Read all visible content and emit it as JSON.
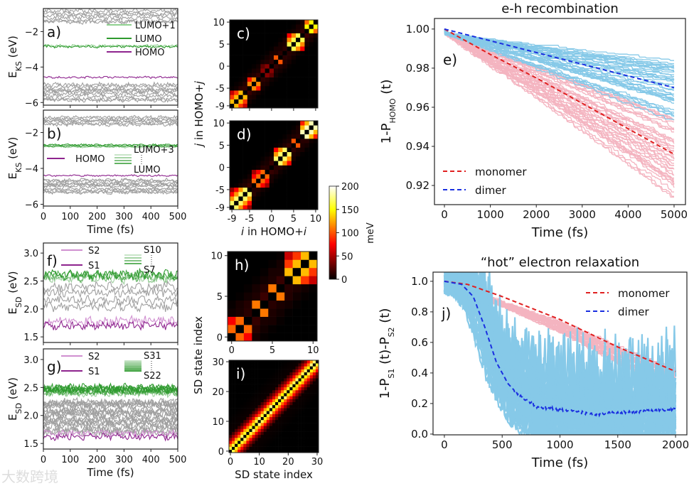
{
  "watermark": "大数跨境",
  "colors": {
    "gray": "#a0a0a0",
    "green": "#2e9a2e",
    "light_green": "#8fd08f",
    "purple": "#8e248e",
    "light_purple": "#d08fd0",
    "red": "#e02020",
    "blue": "#1a2fe0",
    "pink": "#f4b4c0",
    "sky": "#86c9e8"
  },
  "colorbar": {
    "label": "meV",
    "ticks": [
      "0",
      "50",
      "100",
      "150",
      "200"
    ],
    "range": [
      0,
      200
    ],
    "colormap": "hot"
  },
  "chart_data": [
    {
      "id": "a",
      "type": "line",
      "panel_label": "a)",
      "xlim": [
        0,
        500
      ],
      "ylim": [
        -6.15,
        -0.7
      ],
      "xticks": [
        0,
        100,
        200,
        300,
        400,
        500
      ],
      "xtick_labels": [],
      "yticks": [
        -2,
        -4,
        -6
      ],
      "ytick_labels": [
        "−2",
        "−4",
        "−6"
      ],
      "ylabel": [
        {
          "t": "E"
        },
        {
          "t": "KS",
          "sub": true
        },
        {
          "t": " (eV)"
        }
      ],
      "xlabel": "",
      "series": [
        {
          "name": "occupied/unoccupied others (upper)",
          "color": "gray",
          "level": -1.15,
          "spread": 0.35,
          "count": 6,
          "noise": 0.1
        },
        {
          "name": "LUMO+1",
          "color": "light_green",
          "level": -2.8,
          "spread": 0,
          "count": 1,
          "noise": 0.06
        },
        {
          "name": "LUMO",
          "color": "green",
          "level": -2.85,
          "spread": 0,
          "count": 1,
          "noise": 0.06
        },
        {
          "name": "HOMO",
          "color": "purple",
          "level": -4.58,
          "spread": 0,
          "count": 1,
          "noise": 0.05
        },
        {
          "name": "others (lower)",
          "color": "gray",
          "level": -5.45,
          "spread": 0.45,
          "count": 9,
          "noise": 0.1
        }
      ],
      "legend": [
        {
          "label": "LUMO+1",
          "color": "light_green"
        },
        {
          "label": "LUMO",
          "color": "green"
        },
        {
          "label": "HOMO",
          "color": "purple"
        }
      ]
    },
    {
      "id": "b",
      "type": "line",
      "panel_label": "b)",
      "xlim": [
        0,
        500
      ],
      "ylim": [
        -6.1,
        -0.75
      ],
      "xticks": [
        0,
        100,
        200,
        300,
        400,
        500
      ],
      "xtick_labels": [
        "0",
        "100",
        "200",
        "300",
        "400",
        "500"
      ],
      "yticks": [
        -2,
        -4,
        -6
      ],
      "ytick_labels": [
        "−2",
        "−4",
        "−6"
      ],
      "ylabel": [
        {
          "t": "E"
        },
        {
          "t": "KS",
          "sub": true
        },
        {
          "t": " (eV)"
        }
      ],
      "xlabel": "Time (fs)",
      "series": [
        {
          "name": "others (upper)",
          "color": "gray",
          "level": -1.35,
          "spread": 0.22,
          "count": 6,
          "noise": 0.08
        },
        {
          "name": "LUMO…LUMO+3",
          "color": "green",
          "level": -2.75,
          "spread": 0.06,
          "count": 4,
          "noise": 0.04
        },
        {
          "name": "HOMO",
          "color": "purple",
          "level": -4.4,
          "spread": 0,
          "count": 1,
          "noise": 0.04
        },
        {
          "name": "others (lower)",
          "color": "gray",
          "level": -5.0,
          "spread": 0.35,
          "count": 10,
          "noise": 0.08
        }
      ],
      "legend": [
        {
          "label": "HOMO",
          "color": "purple"
        },
        {
          "label_top": "LUMO+3",
          "label_bottom": "LUMO",
          "color": "green"
        }
      ]
    },
    {
      "id": "f",
      "type": "line",
      "panel_label": "f)",
      "xlim": [
        0,
        500
      ],
      "ylim": [
        1.4,
        3.18
      ],
      "xticks": [
        0,
        100,
        200,
        300,
        400,
        500
      ],
      "xtick_labels": [],
      "yticks": [
        3.0,
        2.5,
        2.0,
        1.5
      ],
      "ytick_labels": [
        "3.0",
        "2.5",
        "2.0",
        "1.5"
      ],
      "ylabel": [
        {
          "t": "E"
        },
        {
          "t": "SD",
          "sub": true
        },
        {
          "t": " (eV)"
        }
      ],
      "xlabel": "",
      "series": [
        {
          "name": "S7…S10",
          "color": "green",
          "level": 2.58,
          "spread": 0.04,
          "count": 4,
          "noise": 0.07
        },
        {
          "name": "S3…S6",
          "color": "gray",
          "level": 2.22,
          "spread": 0.16,
          "count": 4,
          "noise": 0.07
        },
        {
          "name": "S2",
          "color": "light_purple",
          "level": 1.78,
          "spread": 0,
          "count": 1,
          "noise": 0.07
        },
        {
          "name": "S1",
          "color": "purple",
          "level": 1.7,
          "spread": 0,
          "count": 1,
          "noise": 0.06
        }
      ],
      "legend": [
        {
          "label": "S2",
          "color": "light_purple"
        },
        {
          "label": "S1",
          "color": "purple"
        },
        {
          "label_top": "S10",
          "label_bottom": "S7",
          "color": "green"
        }
      ]
    },
    {
      "id": "g",
      "type": "line",
      "panel_label": "g)",
      "xlim": [
        0,
        500
      ],
      "ylim": [
        1.4,
        3.19
      ],
      "xticks": [
        0,
        100,
        200,
        300,
        400,
        500
      ],
      "xtick_labels": [
        "0",
        "100",
        "200",
        "300",
        "400",
        "500"
      ],
      "yticks": [
        3.0,
        2.5,
        2.0,
        1.5
      ],
      "ytick_labels": [
        "3.0",
        "2.5",
        "2.0",
        "1.5"
      ],
      "ylabel": [
        {
          "t": "E"
        },
        {
          "t": "SD",
          "sub": true
        },
        {
          "t": " (eV)"
        }
      ],
      "xlabel": "Time (fs)",
      "series": [
        {
          "name": "S22…S31",
          "color": "green",
          "level": 2.45,
          "spread": 0.05,
          "count": 10,
          "noise": 0.06
        },
        {
          "name": "S3…S21",
          "color": "gray",
          "level": 1.98,
          "spread": 0.3,
          "count": 19,
          "noise": 0.06
        },
        {
          "name": "S2",
          "color": "light_purple",
          "level": 1.68,
          "spread": 0,
          "count": 1,
          "noise": 0.05
        },
        {
          "name": "S1",
          "color": "purple",
          "level": 1.62,
          "spread": 0,
          "count": 1,
          "noise": 0.05
        }
      ],
      "legend": [
        {
          "label": "S2",
          "color": "light_purple"
        },
        {
          "label": "S1",
          "color": "purple"
        },
        {
          "label_top": "S31",
          "label_bottom": "S22",
          "color": "green"
        }
      ]
    },
    {
      "id": "c",
      "type": "heatmap",
      "panel_label": "c)",
      "range": [
        -9,
        10
      ],
      "xticks": [
        -9,
        -5,
        0,
        5,
        10
      ],
      "xtick_labels": [],
      "yticks": [
        10,
        5,
        0,
        -5,
        -9
      ],
      "ytick_labels": [
        "10",
        "5",
        "0",
        "-5",
        "-9"
      ],
      "blocks": [
        [
          -9,
          -6,
          130
        ],
        [
          -5,
          -3,
          115
        ],
        [
          -2,
          0,
          40
        ],
        [
          1,
          2,
          100
        ],
        [
          3,
          3,
          80
        ],
        [
          4,
          7,
          165
        ],
        [
          8,
          10,
          150
        ]
      ]
    },
    {
      "id": "d",
      "type": "heatmap",
      "panel_label": "d)",
      "range": [
        -9,
        10
      ],
      "xticks": [
        -9,
        -5,
        0,
        5,
        10
      ],
      "xtick_labels": [
        "-9",
        "-5",
        "0",
        "5",
        "10"
      ],
      "yticks": [
        10,
        5,
        0,
        -5,
        -9
      ],
      "ytick_labels": [
        "10",
        "5",
        "0",
        "-5",
        "-9"
      ],
      "xlabel": [
        {
          "t": "i",
          "it": true
        },
        {
          "t": " in HOMO+"
        },
        {
          "t": "i",
          "it": true
        }
      ],
      "ylabel": [
        {
          "t": "j",
          "it": true
        },
        {
          "t": " in HOMO+"
        },
        {
          "t": "j",
          "it": true
        }
      ],
      "blocks": [
        [
          -9,
          -5,
          170
        ],
        [
          -4,
          -1,
          105
        ],
        [
          0,
          0,
          20
        ],
        [
          1,
          4,
          170
        ],
        [
          5,
          6,
          100
        ],
        [
          7,
          10,
          185
        ]
      ]
    },
    {
      "id": "h",
      "type": "heatmap",
      "panel_label": "h)",
      "range": [
        0,
        10
      ],
      "xticks": [
        0,
        5,
        10
      ],
      "xtick_labels": [
        "0",
        "5",
        "10"
      ],
      "yticks": [
        10,
        5,
        0
      ],
      "ytick_labels": [
        "10",
        "5",
        "0"
      ],
      "blocks": [
        [
          0,
          2,
          105
        ],
        [
          3,
          4,
          110
        ],
        [
          5,
          6,
          110
        ],
        [
          7,
          10,
          130
        ]
      ]
    },
    {
      "id": "i",
      "type": "heatmap",
      "panel_label": "i)",
      "range": [
        0,
        30
      ],
      "xticks": [
        0,
        10,
        20,
        30
      ],
      "xtick_labels": [
        "0",
        "10",
        "20",
        "30"
      ],
      "yticks": [
        30,
        20,
        10,
        0
      ],
      "ytick_labels": [
        "30",
        "20",
        "10",
        "0"
      ],
      "xlabel": [
        {
          "t": "SD state index"
        }
      ],
      "ylabel": [
        {
          "t": "SD state index"
        }
      ],
      "band": [
        0,
        160,
        115,
        70,
        40,
        20
      ]
    },
    {
      "id": "e",
      "type": "line",
      "panel_label": "e)",
      "title": "e-h recombination",
      "xlim": [
        -217,
        5248
      ],
      "ylim": [
        0.9102,
        1.0054
      ],
      "xticks": [
        0,
        1000,
        2000,
        3000,
        4000,
        5000
      ],
      "xtick_labels": [
        "0",
        "1000",
        "2000",
        "3000",
        "4000",
        "5000"
      ],
      "yticks": [
        1.0,
        0.98,
        0.96,
        0.94,
        0.92
      ],
      "ytick_labels": [
        "1.00",
        "0.98",
        "0.96",
        "0.94",
        "0.92"
      ],
      "ylabel": [
        {
          "t": "1-P"
        },
        {
          "t": "HOMO",
          "sub": true
        },
        {
          "t": " (t)"
        }
      ],
      "xlabel": "Time (fs)",
      "ensembles": [
        {
          "name": "monomer trajectories",
          "color": "pink",
          "count": 40,
          "end_range": [
            0.915,
            0.958
          ]
        },
        {
          "name": "dimer trajectories",
          "color": "sky",
          "count": 40,
          "end_range": [
            0.954,
            0.987
          ]
        }
      ],
      "series": [
        {
          "name": "monomer",
          "color": "red",
          "x": [
            0,
            1000,
            2000,
            3000,
            4000,
            5000
          ],
          "y": [
            1.0,
            0.987,
            0.975,
            0.962,
            0.949,
            0.936
          ]
        },
        {
          "name": "dimer",
          "color": "blue",
          "x": [
            0,
            1000,
            2000,
            3000,
            4000,
            5000
          ],
          "y": [
            1.0,
            0.994,
            0.988,
            0.982,
            0.976,
            0.97
          ]
        }
      ],
      "legend": [
        {
          "label": "monomer",
          "color": "red"
        },
        {
          "label": "dimer",
          "color": "blue"
        }
      ],
      "legend_loc": "lower-left"
    },
    {
      "id": "j",
      "type": "line",
      "panel_label": "j)",
      "title": "“hot” electron relaxation",
      "xlim": [
        -98,
        2098
      ],
      "ylim": [
        -0.005,
        1.06
      ],
      "xticks": [
        0,
        500,
        1000,
        1500,
        2000
      ],
      "xtick_labels": [
        "0",
        "500",
        "1000",
        "1500",
        "2000"
      ],
      "yticks": [
        1.0,
        0.8,
        0.6,
        0.4,
        0.2,
        0.0
      ],
      "ytick_labels": [
        "1.0",
        "0.8",
        "0.6",
        "0.4",
        "0.2",
        "0.0"
      ],
      "ylabel": [
        {
          "t": "1-P"
        },
        {
          "t": "S1",
          "sub": true
        },
        {
          "t": " (t)-P"
        },
        {
          "t": "S2",
          "sub": true
        },
        {
          "t": " (t)"
        }
      ],
      "xlabel": "Time (fs)",
      "ensembles": [
        {
          "name": "monomer trajectories",
          "color": "pink",
          "count": 40,
          "end_range": [
            0.33,
            0.48
          ]
        },
        {
          "name": "dimer trajectories",
          "color": "sky",
          "count": 40,
          "end_range": [
            0.0,
            0.45
          ]
        }
      ],
      "series": [
        {
          "name": "monomer",
          "color": "red",
          "x": [
            0,
            200,
            500,
            1000,
            1500,
            2000
          ],
          "y": [
            1.0,
            0.98,
            0.9,
            0.75,
            0.57,
            0.41
          ]
        },
        {
          "name": "dimer",
          "color": "blue",
          "x": [
            0,
            150,
            250,
            350,
            450,
            550,
            650,
            800,
            1000,
            1300,
            1500,
            2000
          ],
          "y": [
            1.0,
            0.98,
            0.9,
            0.7,
            0.47,
            0.33,
            0.25,
            0.18,
            0.16,
            0.13,
            0.14,
            0.16
          ]
        }
      ],
      "legend": [
        {
          "label": "monomer",
          "color": "red"
        },
        {
          "label": "dimer",
          "color": "blue"
        }
      ],
      "legend_loc": "top-right"
    }
  ]
}
